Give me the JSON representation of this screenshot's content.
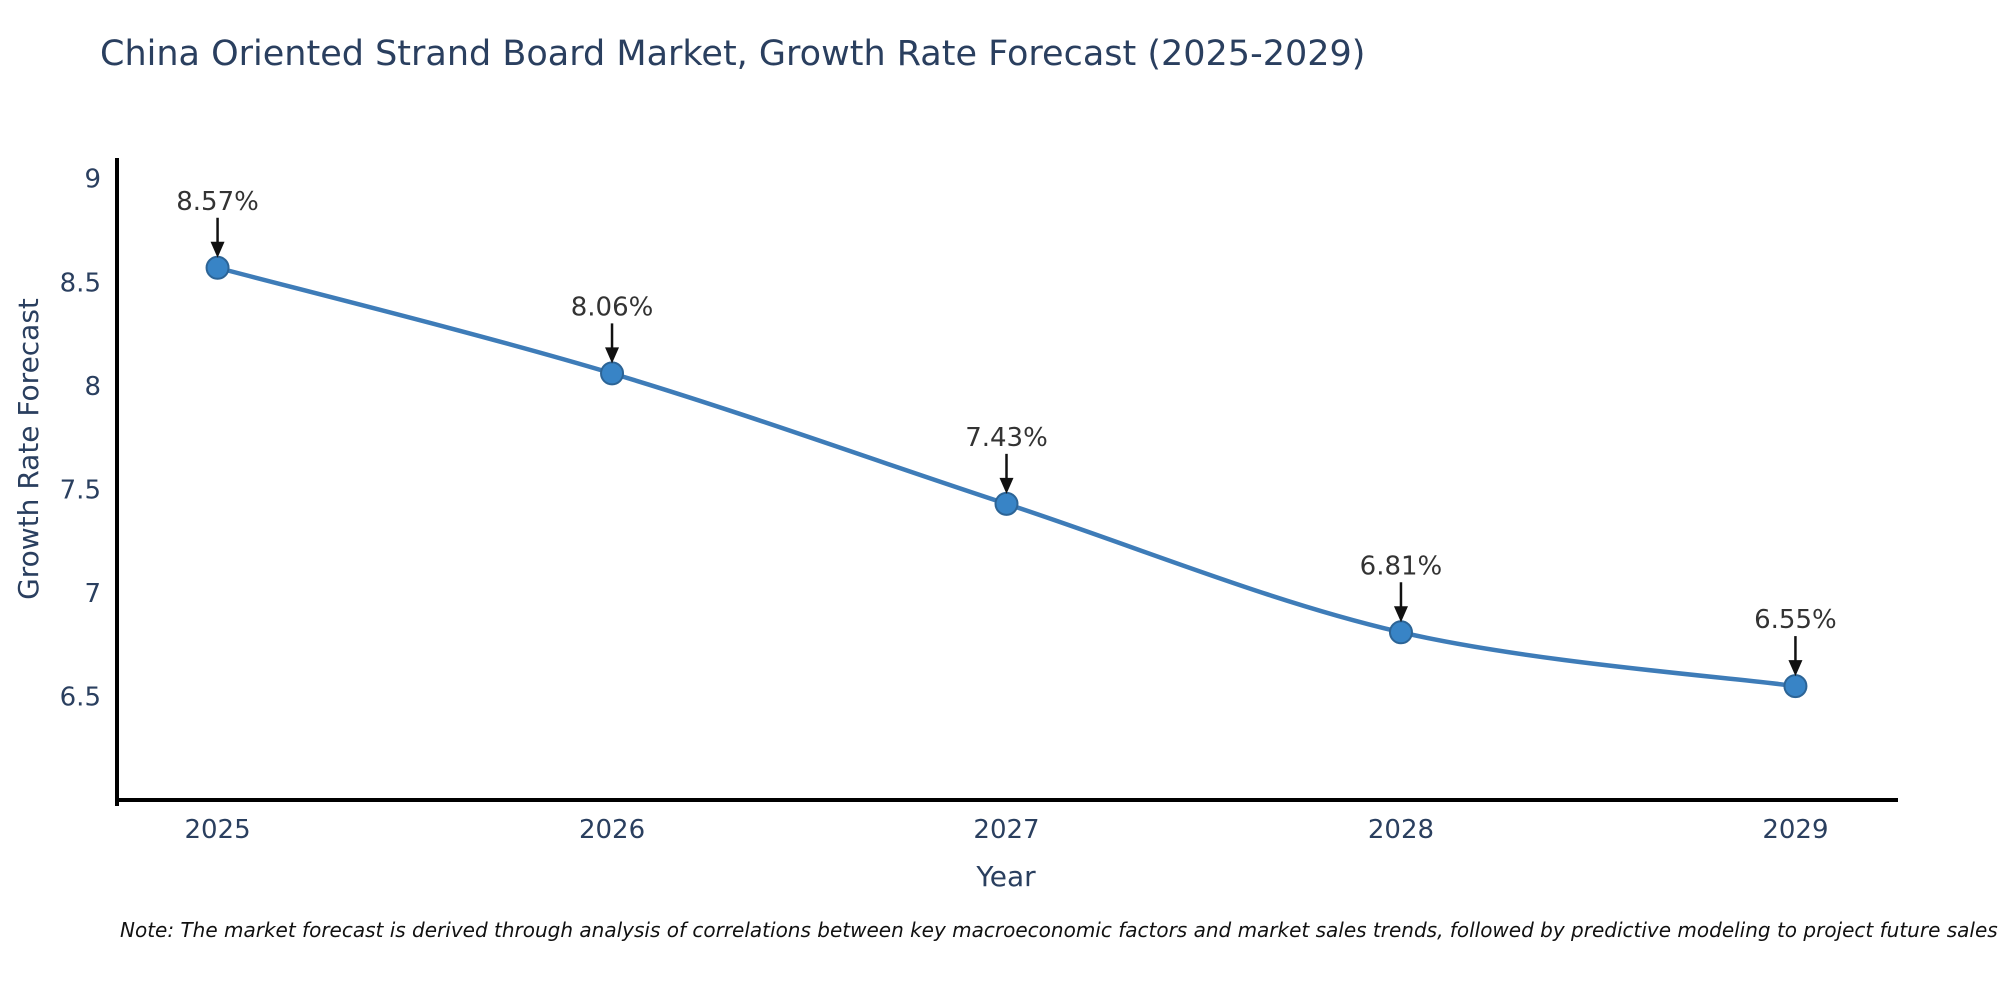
{
  "page": {
    "title": "China Oriented Strand Board Market, Growth Rate Forecast (2025-2029)",
    "note": "Note: The market forecast is derived through analysis of correlations between key macroeconomic factors and market sales trends, followed by predictive modeling to project future sales"
  },
  "chart_data": {
    "type": "line",
    "title": "China Oriented Strand Board Market, Growth Rate Forecast (2025-2029)",
    "xlabel": "Year",
    "ylabel": "Growth Rate Forecast",
    "x": [
      2025,
      2026,
      2027,
      2028,
      2029
    ],
    "series": [
      {
        "name": "Growth Rate Forecast",
        "values": [
          8.57,
          8.06,
          7.43,
          6.81,
          6.55
        ]
      }
    ],
    "point_labels": [
      "8.57%",
      "8.06%",
      "7.43%",
      "6.81%",
      "6.55%"
    ],
    "xtick_labels": [
      "2025",
      "2026",
      "2027",
      "2028",
      "2029"
    ],
    "yticks": [
      9,
      8.5,
      8,
      7.5,
      7,
      6.5
    ],
    "ytick_labels": [
      "9",
      "8.5",
      "8",
      "7.5",
      "7",
      "6.5"
    ],
    "ylim": [
      6.0,
      9.1
    ],
    "xlim": [
      2024.74,
      2029.26
    ],
    "grid": false,
    "legend": false,
    "line_shape": "spline",
    "annotation_style": "down-arrow",
    "colors": {
      "line": "#3e7cb8",
      "marker": "#3884c6",
      "marker_edge": "#2c6496",
      "axis": "#000000",
      "tick_text": "#2a3f5f",
      "annotation_text": "#333333",
      "arrow": "#111111",
      "background": "#ffffff"
    }
  }
}
